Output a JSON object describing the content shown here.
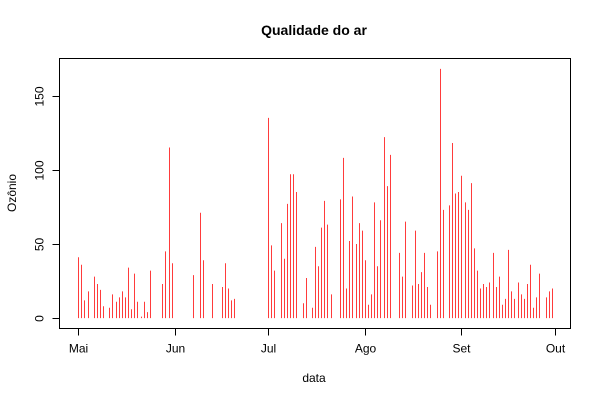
{
  "chart_data": {
    "type": "bar",
    "title": "Qualidade do ar",
    "xlabel": "data",
    "ylabel": "Ozônio",
    "bar_color": "#ff3b3b",
    "grid": false,
    "x_start": "1973-05-01",
    "x_end": "1973-10-01",
    "xlim": [
      "1973-04-25",
      "1973-10-06"
    ],
    "ylim": [
      -7,
      175
    ],
    "x_ticks": [
      {
        "date": "1973-05-01",
        "label": "Mai"
      },
      {
        "date": "1973-06-01",
        "label": "Jun"
      },
      {
        "date": "1973-07-01",
        "label": "Jul"
      },
      {
        "date": "1973-08-01",
        "label": "Ago"
      },
      {
        "date": "1973-09-01",
        "label": "Set"
      },
      {
        "date": "1973-10-01",
        "label": "Out"
      }
    ],
    "y_ticks": [
      0,
      50,
      100,
      150
    ],
    "values": [
      41,
      36,
      12,
      18,
      null,
      28,
      23,
      19,
      8,
      null,
      7,
      16,
      11,
      14,
      18,
      14,
      34,
      6,
      30,
      11,
      1,
      11,
      4,
      32,
      null,
      null,
      null,
      23,
      45,
      115,
      37,
      null,
      null,
      null,
      null,
      null,
      null,
      29,
      null,
      71,
      39,
      null,
      null,
      23,
      null,
      null,
      21,
      37,
      20,
      12,
      13,
      null,
      null,
      null,
      null,
      null,
      null,
      null,
      null,
      null,
      null,
      135,
      49,
      32,
      null,
      64,
      40,
      77,
      97,
      97,
      85,
      null,
      10,
      27,
      null,
      7,
      48,
      35,
      61,
      79,
      63,
      16,
      null,
      null,
      80,
      108,
      20,
      52,
      82,
      50,
      64,
      59,
      39,
      9,
      16,
      78,
      35,
      66,
      122,
      89,
      110,
      null,
      null,
      44,
      28,
      65,
      null,
      22,
      59,
      23,
      31,
      44,
      21,
      9,
      null,
      45,
      168,
      73,
      null,
      76,
      118,
      84,
      85,
      96,
      78,
      73,
      91,
      47,
      32,
      20,
      23,
      21,
      24,
      44,
      21,
      28,
      9,
      13,
      46,
      18,
      13,
      24,
      16,
      13,
      23,
      36,
      7,
      14,
      30,
      null,
      14,
      18,
      20
    ]
  }
}
